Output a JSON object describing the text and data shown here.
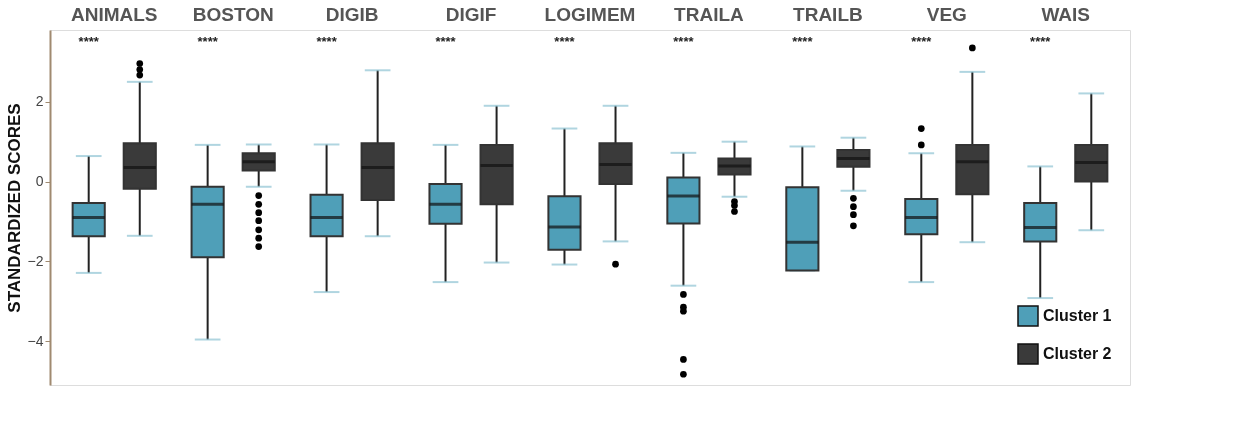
{
  "chart_data": {
    "type": "box",
    "ylabel": "STANDARDIZED SCORES",
    "categories": [
      "ANIMALS",
      "BOSTON",
      "DIGIB",
      "DIGIF",
      "LOGIMEM",
      "TRAILA",
      "TRAILB",
      "VEG",
      "WAIS"
    ],
    "series": [
      {
        "name": "Cluster 1",
        "color": "#4f9fb8",
        "boxes": [
          {
            "low": -2.29,
            "q1": -1.37,
            "median": -0.9,
            "q3": -0.54,
            "high": 0.64
          },
          {
            "low": -3.96,
            "q1": -1.9,
            "median": -0.57,
            "q3": -0.13,
            "high": 0.92
          },
          {
            "low": -2.77,
            "q1": -1.37,
            "median": -0.9,
            "q3": -0.33,
            "high": 0.93
          },
          {
            "low": -2.52,
            "q1": -1.06,
            "median": -0.57,
            "q3": -0.06,
            "high": 0.92
          },
          {
            "low": -2.08,
            "q1": -1.71,
            "median": -1.14,
            "q3": -0.37,
            "high": 1.33
          },
          {
            "low": -2.61,
            "q1": -1.05,
            "median": -0.36,
            "q3": 0.1,
            "high": 0.72,
            "outliers": [
              -2.83,
              -3.15,
              -3.25,
              -4.46,
              -4.83
            ]
          },
          {
            "low": -2.23,
            "q1": -2.23,
            "median": -1.52,
            "q3": -0.14,
            "high": 0.88
          },
          {
            "low": -2.52,
            "q1": -1.32,
            "median": -0.9,
            "q3": -0.44,
            "high": 0.71,
            "outliers": [
              1.33,
              0.92
            ]
          },
          {
            "low": -2.92,
            "q1": -1.5,
            "median": -1.15,
            "q3": -0.54,
            "high": 0.38
          }
        ]
      },
      {
        "name": "Cluster 2",
        "color": "#3a3a3a",
        "boxes": [
          {
            "low": -1.36,
            "q1": -0.18,
            "median": 0.35,
            "q3": 0.96,
            "high": 2.5,
            "outliers": [
              2.96,
              2.81,
              2.67
            ]
          },
          {
            "low": -0.13,
            "q1": 0.28,
            "median": 0.5,
            "q3": 0.71,
            "high": 0.93,
            "outliers": [
              -0.35,
              -0.57,
              -0.78,
              -0.98,
              -1.21,
              -1.42,
              -1.63
            ]
          },
          {
            "low": -1.37,
            "q1": -0.46,
            "median": 0.35,
            "q3": 0.96,
            "high": 2.79
          },
          {
            "low": -2.03,
            "q1": -0.57,
            "median": 0.4,
            "q3": 0.92,
            "high": 1.9
          },
          {
            "low": -1.5,
            "q1": -0.06,
            "median": 0.43,
            "q3": 0.96,
            "high": 1.9,
            "outliers": [
              -2.07
            ]
          },
          {
            "low": -0.38,
            "q1": 0.18,
            "median": 0.39,
            "q3": 0.58,
            "high": 1.0,
            "outliers": [
              -0.5,
              -0.6,
              -0.75
            ]
          },
          {
            "low": -0.23,
            "q1": 0.37,
            "median": 0.58,
            "q3": 0.79,
            "high": 1.1,
            "outliers": [
              -0.42,
              -0.63,
              -0.83,
              -1.11
            ]
          },
          {
            "low": -1.52,
            "q1": -0.32,
            "median": 0.5,
            "q3": 0.92,
            "high": 2.75,
            "outliers": [
              3.35
            ]
          },
          {
            "low": -1.22,
            "q1": 0.0,
            "median": 0.48,
            "q3": 0.92,
            "high": 2.21
          }
        ]
      }
    ],
    "ylim": [
      -5.1,
      3.8
    ],
    "yticks": [
      -4,
      -2,
      0,
      2
    ],
    "grid": false,
    "legend": "bottom right",
    "annotations": [
      "****",
      "****",
      "****",
      "****",
      "****",
      "****",
      "****",
      "****",
      "****"
    ]
  }
}
